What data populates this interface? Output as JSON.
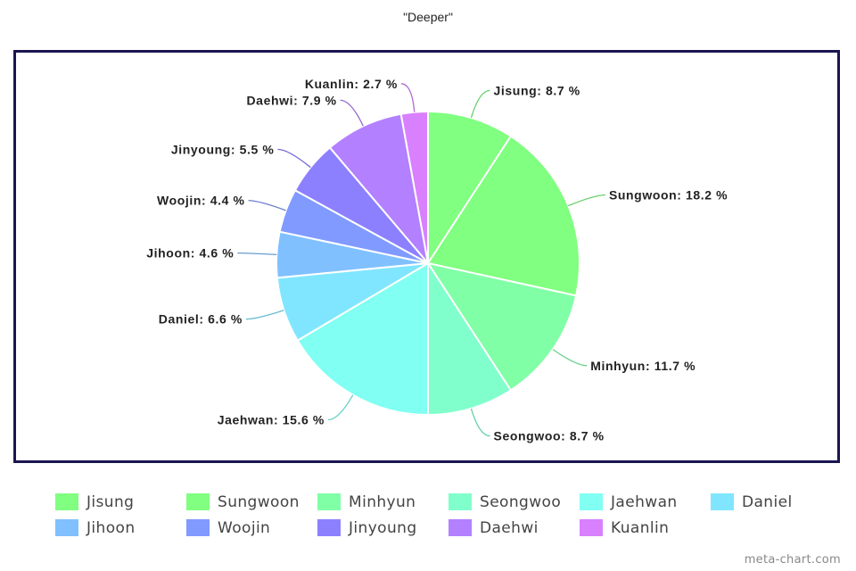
{
  "chart_data": {
    "type": "pie",
    "title": "\"Deeper\"",
    "legend_position": "bottom",
    "slices": [
      {
        "name": "Jisung",
        "value": 8.7,
        "label": "Jisung: 8.7 %",
        "color": "#80ff80"
      },
      {
        "name": "Sungwoon",
        "value": 18.2,
        "label": "Sungwoon: 18.2 %",
        "color": "#80ff80"
      },
      {
        "name": "Minhyun",
        "value": 11.7,
        "label": "Minhyun: 11.7 %",
        "color": "#80ffa6"
      },
      {
        "name": "Seongwoo",
        "value": 8.7,
        "label": "Seongwoo: 8.7 %",
        "color": "#80ffcc"
      },
      {
        "name": "Jaehwan",
        "value": 15.6,
        "label": "Jaehwan: 15.6 %",
        "color": "#80fff2"
      },
      {
        "name": "Daniel",
        "value": 6.6,
        "label": "Daniel: 6.6 %",
        "color": "#80e6ff"
      },
      {
        "name": "Jihoon",
        "value": 4.6,
        "label": "Jihoon: 4.6 %",
        "color": "#80c0ff"
      },
      {
        "name": "Woojin",
        "value": 4.4,
        "label": "Woojin: 4.4 %",
        "color": "#809aff"
      },
      {
        "name": "Jinyoung",
        "value": 5.5,
        "label": "Jinyoung: 5.5 %",
        "color": "#8c80ff"
      },
      {
        "name": "Daehwi",
        "value": 7.9,
        "label": "Daehwi: 7.9 %",
        "color": "#b380ff"
      },
      {
        "name": "Kuanlin",
        "value": 2.7,
        "label": "Kuanlin: 2.7 %",
        "color": "#d980ff"
      }
    ]
  },
  "watermark": "meta-chart.com"
}
